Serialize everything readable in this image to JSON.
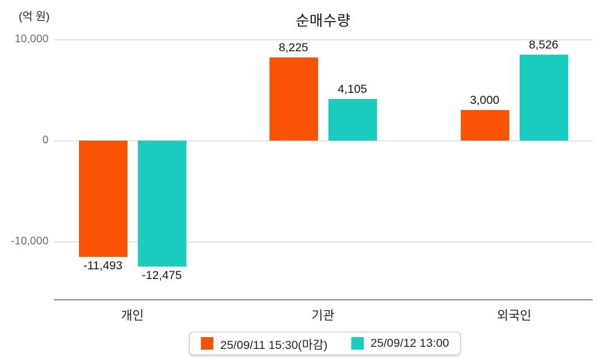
{
  "unit_label": "(억 원)",
  "title": "순매수량",
  "colors": {
    "series1": "#fb5305",
    "series2": "#1acdbf",
    "gridline": "#d2d2d2",
    "axis": "#939393",
    "tick_text": "#6a6a6a"
  },
  "y_axis": {
    "ticks": [
      {
        "label": "10,000",
        "value": 10000
      },
      {
        "label": "0",
        "value": 0
      },
      {
        "label": "-10,000",
        "value": -10000
      }
    ]
  },
  "chart_data": {
    "type": "bar",
    "title": "순매수량",
    "ylabel": "(억 원)",
    "categories": [
      "개인",
      "기관",
      "외국인"
    ],
    "series": [
      {
        "name": "25/09/11 15:30(마감)",
        "color": "#fb5305",
        "values": [
          -11493,
          8225,
          3000
        ],
        "labels": [
          "-11,493",
          "8,225",
          "3,000"
        ]
      },
      {
        "name": "25/09/12 13:00",
        "color": "#1acdbf",
        "values": [
          -12475,
          4105,
          8526
        ],
        "labels": [
          "-12,475",
          "4,105",
          "8,526"
        ]
      }
    ],
    "ylim": [
      -14000,
      10500
    ],
    "grid": "horizontal",
    "legend_position": "bottom"
  },
  "legend": {
    "items": [
      {
        "label": "25/09/11 15:30(마감)",
        "color": "#fb5305"
      },
      {
        "label": "25/09/12 13:00",
        "color": "#1acdbf"
      }
    ]
  }
}
